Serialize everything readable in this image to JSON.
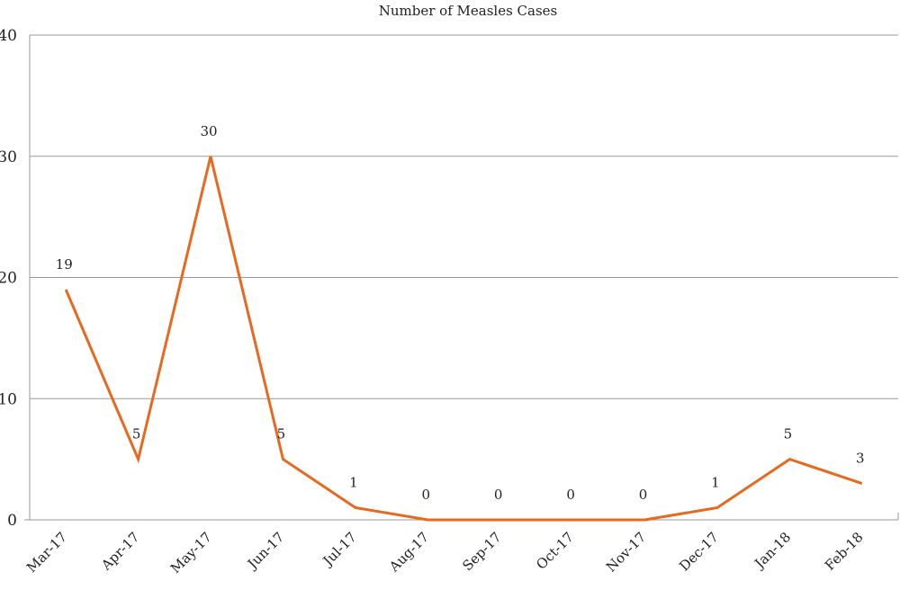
{
  "chart_data": {
    "type": "line",
    "title": "Number of Measles Cases",
    "xlabel": "",
    "ylabel": "",
    "categories": [
      "Mar-17",
      "Apr-17",
      "May-17",
      "Jun-17",
      "Jul-17",
      "Aug-17",
      "Sep-17",
      "Oct-17",
      "Nov-17",
      "Dec-17",
      "Jan-18",
      "Feb-18"
    ],
    "series": [
      {
        "values": [
          19,
          5,
          30,
          5,
          1,
          0,
          0,
          0,
          0,
          1,
          5,
          3
        ],
        "color": "#e8691e"
      }
    ],
    "ylim": [
      0,
      40
    ],
    "yticks": [
      0,
      10,
      20,
      30,
      40
    ],
    "grid": true,
    "data_labels": true,
    "legend": "none"
  }
}
